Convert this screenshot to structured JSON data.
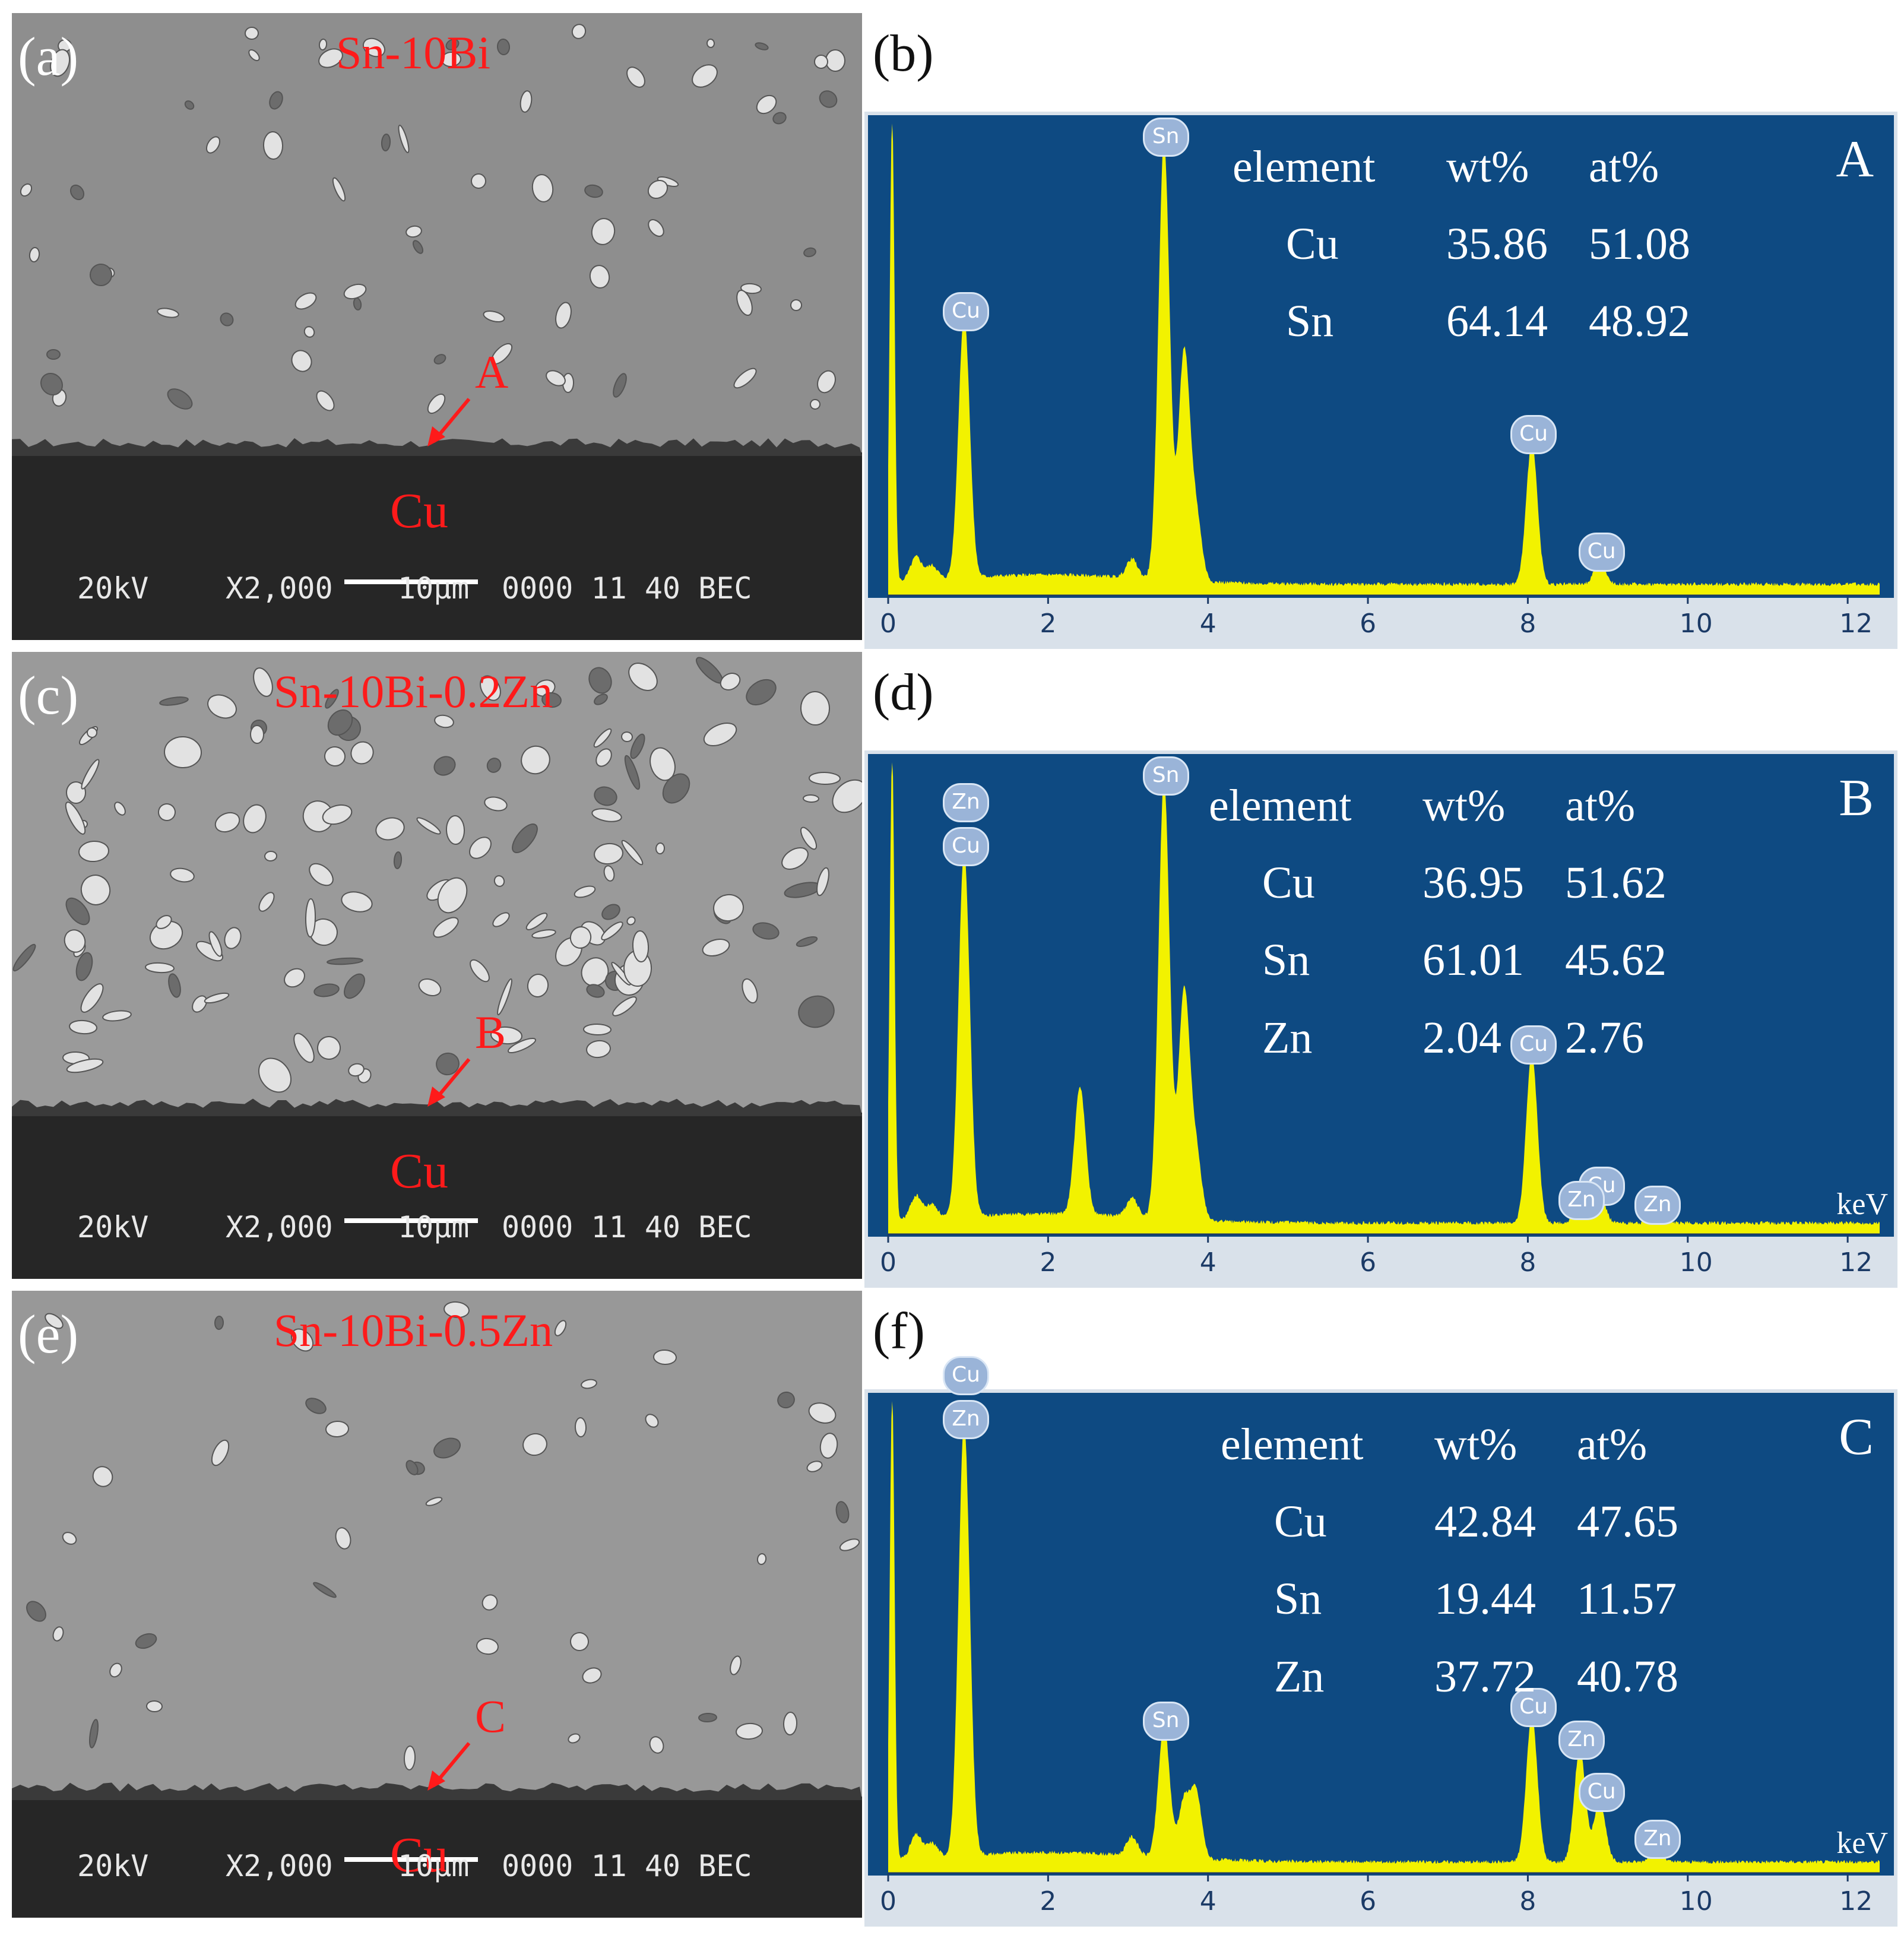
{
  "panels": [
    {
      "label": "(a)",
      "alloy": "Sn-10Bi",
      "substrate": "Cu",
      "point": "A",
      "info": {
        "kv": "20kV",
        "mag": "X2,000",
        "scale": "10μm",
        "code": "0000 11 40 BEC"
      }
    },
    {
      "label": "(c)",
      "alloy": "Sn-10Bi-0.2Zn",
      "substrate": "Cu",
      "point": "B",
      "info": {
        "kv": "20kV",
        "mag": "X2,000",
        "scale": "10μm",
        "code": "0000 11 40 BEC"
      }
    },
    {
      "label": "(e)",
      "alloy": "Sn-10Bi-0.5Zn",
      "substrate": "Cu",
      "point": "C",
      "info": {
        "kv": "20kV",
        "mag": "X2,000",
        "scale": "10μm",
        "code": "0000 11 40 BEC"
      }
    }
  ],
  "spectra": [
    {
      "label": "(b)",
      "point": "A",
      "unit": "",
      "table_header": [
        "element",
        "wt%",
        "at%"
      ],
      "rows": [
        [
          "Cu",
          "35.86",
          "51.08"
        ],
        [
          "Sn",
          "64.14",
          "48.92"
        ]
      ],
      "peaks": [
        {
          "label": "Cu",
          "kev": 0.95,
          "height": 0.56
        },
        {
          "label": "Sn",
          "kev": 3.45,
          "height": 0.93
        },
        {
          "label": "Cu",
          "kev": 8.05,
          "height": 0.3
        },
        {
          "label": "Cu",
          "kev": 8.9,
          "height": 0.05
        }
      ]
    },
    {
      "label": "(d)",
      "point": "B",
      "unit": "keV",
      "table_header": [
        "element",
        "wt%",
        "at%"
      ],
      "rows": [
        [
          "Cu",
          "36.95",
          "51.62"
        ],
        [
          "Sn",
          "61.01",
          "45.62"
        ],
        [
          "Zn",
          "2.04",
          "2.76"
        ]
      ],
      "peaks": [
        {
          "label": "Cu",
          "kev": 0.95,
          "height": 0.78,
          "stack": "Zn"
        },
        {
          "label": "Sn",
          "kev": 3.45,
          "height": 0.93
        },
        {
          "label": "Cu",
          "kev": 8.05,
          "height": 0.36
        },
        {
          "label": "Cu",
          "kev": 8.9,
          "height": 0.06
        },
        {
          "label": "Zn",
          "kev": 8.65,
          "height": 0.03
        },
        {
          "label": "Zn",
          "kev": 9.6,
          "height": 0.02
        }
      ]
    },
    {
      "label": "(f)",
      "point": "C",
      "unit": "keV",
      "table_header": [
        "element",
        "wt%",
        "at%"
      ],
      "rows": [
        [
          "Cu",
          "42.84",
          "47.65"
        ],
        [
          "Sn",
          "19.44",
          "11.57"
        ],
        [
          "Zn",
          "37.72",
          "40.78"
        ]
      ],
      "peaks": [
        {
          "label": "Zn",
          "kev": 0.95,
          "height": 0.92,
          "stack": "Cu"
        },
        {
          "label": "Sn",
          "kev": 3.45,
          "height": 0.28
        },
        {
          "label": "Cu",
          "kev": 8.05,
          "height": 0.31
        },
        {
          "label": "Zn",
          "kev": 8.65,
          "height": 0.24
        },
        {
          "label": "Cu",
          "kev": 8.9,
          "height": 0.13
        },
        {
          "label": "Zn",
          "kev": 9.6,
          "height": 0.03
        }
      ]
    }
  ],
  "chart_data": [
    {
      "type": "line",
      "x_ticks": [
        "0",
        "2",
        "4",
        "6",
        "8",
        "10",
        "12"
      ],
      "xlim": [
        0,
        12.4
      ]
    },
    {
      "type": "line",
      "x_ticks": [
        "0",
        "2",
        "4",
        "6",
        "8",
        "10",
        "12"
      ],
      "xlim": [
        0,
        12.4
      ]
    },
    {
      "type": "line",
      "x_ticks": [
        "0",
        "2",
        "4",
        "6",
        "8",
        "10",
        "12"
      ],
      "xlim": [
        0,
        12.4
      ]
    }
  ],
  "colors": {
    "eds_bg": "#0e4a82",
    "spectrum": "#f2f200",
    "annotation": "#ff1a1a"
  }
}
